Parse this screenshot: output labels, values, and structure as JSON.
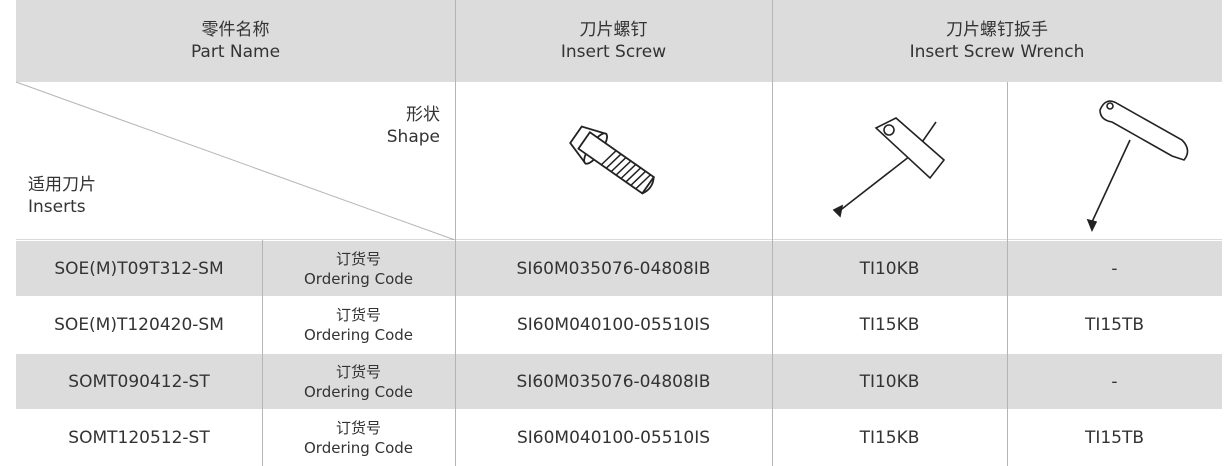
{
  "header": {
    "part_name": [
      "零件名称",
      "Part Name"
    ],
    "insert_screw": [
      "刀片螺钉",
      "Insert Screw"
    ],
    "wrench": [
      "刀片螺钉扳手",
      "Insert Screw Wrench"
    ]
  },
  "shape_row": {
    "shape": [
      "形状",
      "Shape"
    ],
    "inserts": [
      "适用刀片",
      "Inserts"
    ]
  },
  "rows": [
    {
      "insert": "SOE(M)T09T312-SM",
      "code_label": [
        "订货号",
        "Ordering Code"
      ],
      "screw": "SI60M035076-04808IB",
      "wrench_kb": "TI10KB",
      "wrench_tb": "-"
    },
    {
      "insert": "SOE(M)T120420-SM",
      "code_label": [
        "订货号",
        "Ordering Code"
      ],
      "screw": "SI60M040100-05510IS",
      "wrench_kb": "TI15KB",
      "wrench_tb": "TI15TB"
    },
    {
      "insert": "SOMT090412-ST",
      "code_label": [
        "订货号",
        "Ordering Code"
      ],
      "screw": "SI60M035076-04808IB",
      "wrench_kb": "TI10KB",
      "wrench_tb": "-"
    },
    {
      "insert": "SOMT120512-ST",
      "code_label": [
        "订货号",
        "Ordering Code"
      ],
      "screw": "SI60M040100-05510IS",
      "wrench_kb": "TI15KB",
      "wrench_tb": "TI15TB"
    }
  ]
}
